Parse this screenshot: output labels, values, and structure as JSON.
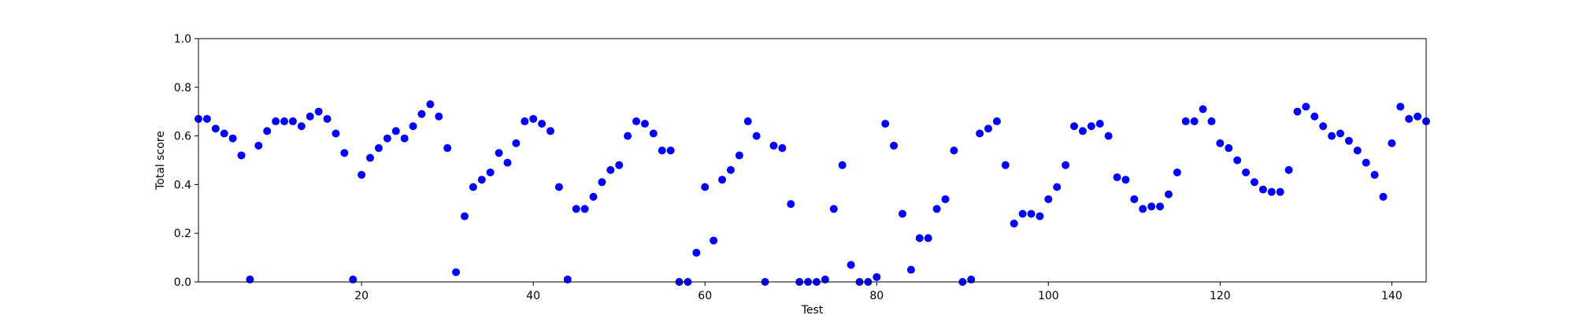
{
  "chart_data": {
    "type": "scatter",
    "title": "",
    "xlabel": "Test",
    "ylabel": "Total score",
    "xlim": [
      1,
      144
    ],
    "ylim": [
      0.0,
      1.0
    ],
    "xticks": [
      20,
      40,
      60,
      80,
      100,
      120,
      140
    ],
    "xtick_labels": [
      "20",
      "40",
      "60",
      "80",
      "100",
      "120",
      "140"
    ],
    "yticks": [
      0.0,
      0.2,
      0.4,
      0.6,
      0.8,
      1.0
    ],
    "ytick_labels": [
      "0.0",
      "0.2",
      "0.4",
      "0.6",
      "0.8",
      "1.0"
    ],
    "grid": false,
    "legend": "none",
    "colors": {
      "marker": "#0000ff",
      "axes": "#000000",
      "background": "#ffffff"
    },
    "series": [
      {
        "x": [
          1,
          2,
          3,
          4,
          5,
          6,
          7,
          8,
          9,
          10,
          11,
          12,
          13,
          14,
          15,
          16,
          17,
          18,
          19,
          20,
          21,
          22,
          23,
          24,
          25,
          26,
          27,
          28,
          29,
          30,
          31,
          32,
          33,
          34,
          35,
          36,
          37,
          38,
          39,
          40,
          41,
          42,
          43,
          44,
          45,
          46,
          47,
          48,
          49,
          50,
          51,
          52,
          53,
          54,
          55,
          56,
          57,
          58,
          59,
          60,
          61,
          62,
          63,
          64,
          65,
          66,
          67,
          68,
          69,
          70,
          71,
          72,
          73,
          74,
          75,
          76,
          77,
          78,
          79,
          80,
          81,
          82,
          83,
          84,
          85,
          86,
          87,
          88,
          89,
          90,
          91,
          92,
          93,
          94,
          95,
          96,
          97,
          98,
          99,
          100,
          101,
          102,
          103,
          104,
          105,
          106,
          107,
          108,
          109,
          110,
          111,
          112,
          113,
          114,
          115,
          116,
          117,
          118,
          119,
          120,
          121,
          122,
          123,
          124,
          125,
          126,
          127,
          128,
          129,
          130,
          131,
          132,
          133,
          134,
          135,
          136,
          137,
          138,
          139,
          140,
          141,
          142,
          143,
          144
        ],
        "y": [
          0.67,
          0.67,
          0.63,
          0.61,
          0.59,
          0.52,
          0.01,
          0.56,
          0.62,
          0.66,
          0.66,
          0.66,
          0.64,
          0.68,
          0.7,
          0.67,
          0.61,
          0.53,
          0.01,
          0.44,
          0.51,
          0.55,
          0.59,
          0.62,
          0.59,
          0.64,
          0.69,
          0.73,
          0.68,
          0.55,
          0.04,
          0.27,
          0.39,
          0.42,
          0.45,
          0.53,
          0.49,
          0.57,
          0.66,
          0.67,
          0.65,
          0.62,
          0.39,
          0.01,
          0.3,
          0.3,
          0.35,
          0.41,
          0.46,
          0.48,
          0.6,
          0.66,
          0.65,
          0.61,
          0.54,
          0.54,
          0.0,
          0.0,
          0.12,
          0.39,
          0.17,
          0.42,
          0.46,
          0.52,
          0.66,
          0.6,
          0.0,
          0.56,
          0.55,
          0.32,
          0.0,
          0.0,
          0.0,
          0.01,
          0.3,
          0.48,
          0.07,
          0.0,
          0.0,
          0.02,
          0.65,
          0.56,
          0.28,
          0.05,
          0.18,
          0.18,
          0.3,
          0.34,
          0.54,
          0.0,
          0.01,
          0.61,
          0.63,
          0.66,
          0.48,
          0.24,
          0.28,
          0.28,
          0.27,
          0.34,
          0.39,
          0.48,
          0.64,
          0.62,
          0.64,
          0.65,
          0.6,
          0.43,
          0.42,
          0.34,
          0.3,
          0.31,
          0.31,
          0.36,
          0.45,
          0.66,
          0.66,
          0.71,
          0.66,
          0.57,
          0.55,
          0.5,
          0.45,
          0.41,
          0.38,
          0.37,
          0.37,
          0.46,
          0.7,
          0.72,
          0.68,
          0.64,
          0.6,
          0.61,
          0.58,
          0.54,
          0.49,
          0.44,
          0.35,
          0.57,
          0.72,
          0.67,
          0.68,
          0.66
        ]
      }
    ]
  }
}
